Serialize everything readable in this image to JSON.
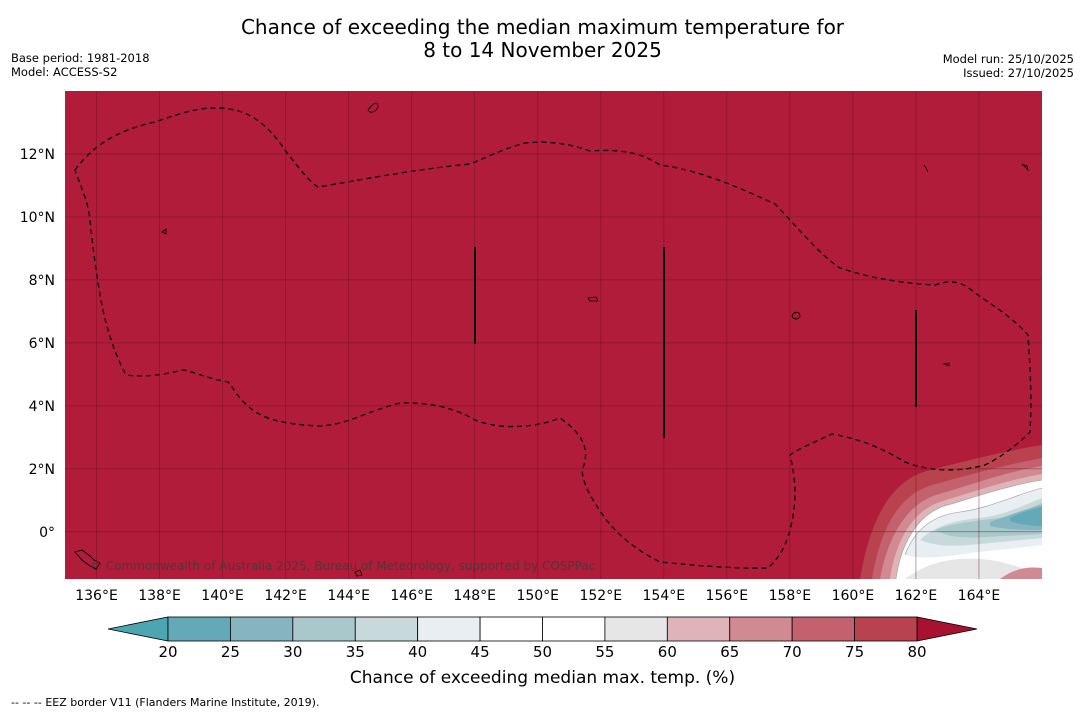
{
  "header": {
    "title_line1": "Chance of exceeding the median maximum temperature for",
    "title_line2": "8 to 14 November 2025",
    "base_period": "Base period: 1981-2018",
    "model": "Model: ACCESS-S2",
    "model_run": "Model run: 25/10/2025",
    "issued": "Issued: 27/10/2025"
  },
  "map": {
    "lat_labels": [
      "12°N",
      "10°N",
      "8°N",
      "6°N",
      "4°N",
      "2°N",
      "0°"
    ],
    "lat_values": [
      12,
      10,
      8,
      6,
      4,
      2,
      0
    ],
    "lon_labels": [
      "136°E",
      "138°E",
      "140°E",
      "142°E",
      "144°E",
      "146°E",
      "148°E",
      "150°E",
      "152°E",
      "154°E",
      "156°E",
      "158°E",
      "160°E",
      "162°E",
      "164°E"
    ],
    "lon_values": [
      136,
      138,
      140,
      142,
      144,
      146,
      148,
      150,
      152,
      154,
      156,
      158,
      160,
      162,
      164
    ],
    "extent": {
      "lon_min": 135.0,
      "lon_max": 166.0,
      "lat_min": -1.5,
      "lat_max": 14.0
    },
    "copyright": "© Commonwealth of Australia 2025, Bureau of Meteorology, supported by COSPPac",
    "dominant_color": "#b01c3a"
  },
  "colorbar": {
    "ticks": [
      "20",
      "25",
      "30",
      "35",
      "40",
      "45",
      "50",
      "55",
      "60",
      "65",
      "70",
      "75",
      "80"
    ],
    "colors": [
      "#63a9b7",
      "#86b5c1",
      "#a8c8cc",
      "#c7d9da",
      "#e8eef1",
      "#ffffff",
      "#ffffff",
      "#e6e6e6",
      "#deb4b9",
      "#d18a92",
      "#c3616e",
      "#b8434f"
    ],
    "under_color": "#4da5b1",
    "over_color": "#a8122f",
    "title": "Chance of exceeding median max. temp. (%)"
  },
  "footer": {
    "legend_symbol": "--  --  --",
    "eez_text": "EEZ border V11 (Flanders Marine Institute, 2019)."
  }
}
